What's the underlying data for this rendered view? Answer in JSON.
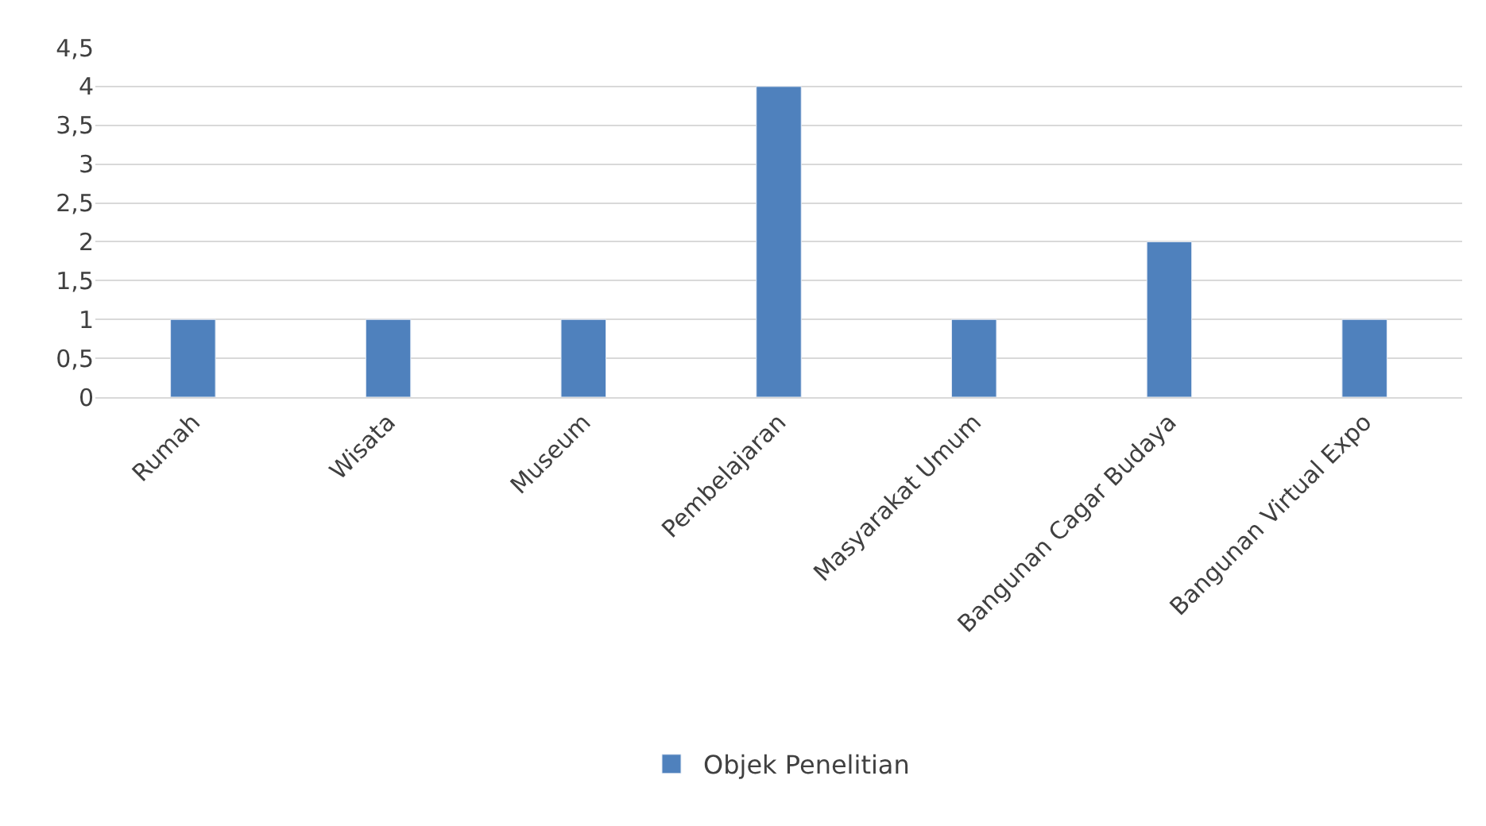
{
  "chart_data": {
    "type": "bar",
    "categories": [
      "Rumah",
      "Wisata",
      "Museum",
      "Pembelajaran",
      "Masyarakat Umum",
      "Bangunan Cagar Budaya",
      "Bangunan Virtual Expo"
    ],
    "series": [
      {
        "name": "Objek Penelitian",
        "color": "#4f81bd",
        "values": [
          1,
          1,
          1,
          4,
          1,
          2,
          1
        ]
      }
    ],
    "ylim": [
      0,
      4.5
    ],
    "yticks": [
      0,
      {
        "value": 0.5,
        "label": "0,5"
      },
      1,
      {
        "value": 1.5,
        "label": "1,5"
      },
      2,
      {
        "value": 2.5,
        "label": "2,5"
      },
      3,
      {
        "value": 3.5,
        "label": "3,5"
      },
      4,
      {
        "value": 4.5,
        "label": "4,5"
      }
    ],
    "grid": "y",
    "legend": "bottom"
  }
}
